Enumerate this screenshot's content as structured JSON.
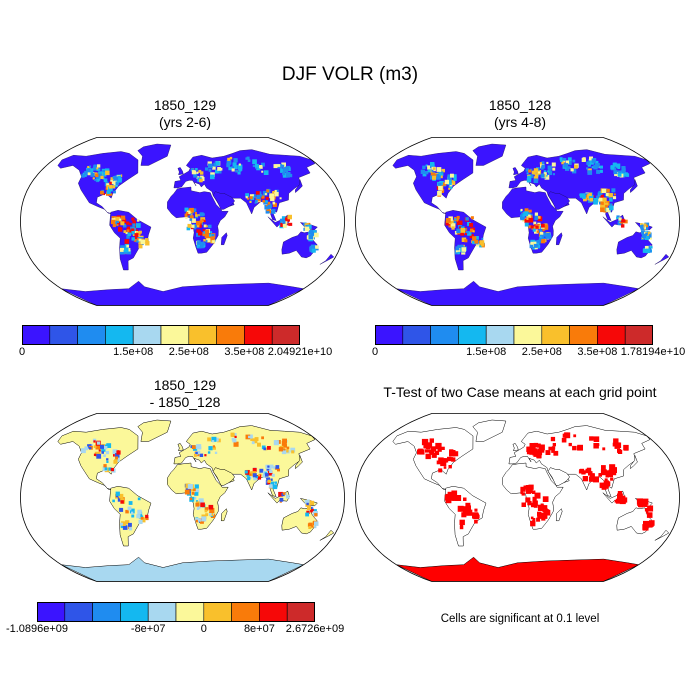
{
  "title": "DJF VOLR (m3)",
  "panels": [
    {
      "id": "p1",
      "title_line1": "1850_129",
      "title_line2": "(yrs 2-6)"
    },
    {
      "id": "p2",
      "title_line1": "1850_128",
      "title_line2": "(yrs 4-8)"
    },
    {
      "id": "p3",
      "title_line1": "1850_129",
      "title_line2": "- 1850_128"
    },
    {
      "id": "p4",
      "title_line1": "T-Test of two Case means at each grid point",
      "title_line2": ""
    }
  ],
  "colorbars": {
    "abs_colors": [
      "#3b14ff",
      "#2f55e8",
      "#1f8cf0",
      "#14b8f0",
      "#a8d8f0",
      "#fbf89a",
      "#f9c02c",
      "#f97b0a",
      "#f60808",
      "#cd2a2a"
    ],
    "p1_labels": [
      "0",
      "1.5e+08",
      "2.5e+08",
      "3.5e+08",
      "2.04921e+10"
    ],
    "p2_labels": [
      "0",
      "1.5e+08",
      "2.5e+08",
      "3.5e+08",
      "1.78194e+10"
    ],
    "diff_colors": [
      "#3b14ff",
      "#2f55e8",
      "#1f8cf0",
      "#14b8f0",
      "#a8d8f0",
      "#fbf89a",
      "#f9c02c",
      "#f97b0a",
      "#f60808",
      "#cd2a2a"
    ],
    "p3_labels": [
      "-1.0896e+09",
      "-8e+07",
      "0",
      "8e+07",
      "2.6726e+09"
    ]
  },
  "significance_note": "Cells are significant at 0.1 level",
  "map_colors": {
    "abs_land": "#3b14ff",
    "abs_hot": "#f60808",
    "abs_warm": "#f9c02c",
    "diff_land": "#fbf89a",
    "diff_ocean_ice": "#a8d8f0",
    "diff_pos": "#f97b0a",
    "diff_neg": "#2f55e8",
    "sig": "#ff0000"
  }
}
